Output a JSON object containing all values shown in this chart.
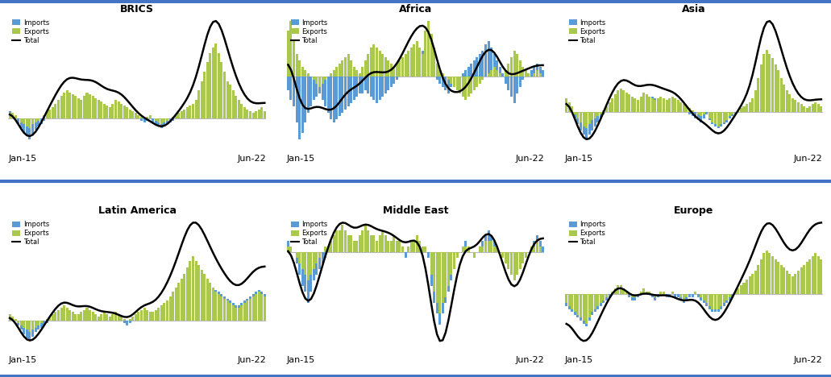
{
  "titles": [
    "BRICS",
    "Africa",
    "Asia",
    "Latin America",
    "Middle East",
    "Europe"
  ],
  "import_color": "#5b9bd5",
  "export_color": "#a9c84c",
  "total_color": "#000000",
  "background_color": "#ffffff",
  "border_color": "#4472c4",
  "legend_labels": [
    "Imports",
    "Exports",
    "Total"
  ],
  "x_start_label": "Jan-15",
  "x_end_label": "Jun-22",
  "n_points": 90,
  "smooth_sigma": 2.5,
  "series": {
    "BRICS": {
      "imports": [
        4,
        1,
        0,
        -3,
        -5,
        -7,
        -9,
        -11,
        -9,
        -6,
        -4,
        -3,
        -1,
        1,
        2,
        3,
        5,
        6,
        7,
        8,
        9,
        10,
        11,
        10,
        9,
        8,
        7,
        8,
        9,
        10,
        10,
        9,
        8,
        8,
        7,
        6,
        7,
        8,
        7,
        6,
        5,
        4,
        3,
        2,
        1,
        0,
        -1,
        -2,
        -1,
        0,
        -2,
        -3,
        -4,
        -5,
        -4,
        -3,
        -2,
        -1,
        0,
        1,
        2,
        3,
        4,
        5,
        6,
        8,
        10,
        12,
        15,
        18,
        20,
        22,
        24,
        22,
        20,
        18,
        15,
        13,
        11,
        9,
        7,
        5,
        5,
        4,
        3,
        2,
        3,
        4,
        5,
        3
      ],
      "exports": [
        3,
        3,
        2,
        0,
        -2,
        -3,
        -4,
        -5,
        -3,
        -2,
        -1,
        0,
        2,
        4,
        5,
        6,
        8,
        10,
        12,
        14,
        15,
        14,
        13,
        12,
        11,
        10,
        12,
        14,
        13,
        12,
        11,
        10,
        9,
        8,
        7,
        6,
        8,
        10,
        9,
        8,
        7,
        6,
        5,
        4,
        3,
        2,
        1,
        0,
        1,
        2,
        0,
        -1,
        -2,
        -3,
        -2,
        -1,
        0,
        1,
        2,
        3,
        4,
        5,
        6,
        7,
        8,
        10,
        15,
        20,
        25,
        30,
        35,
        38,
        40,
        35,
        30,
        25,
        20,
        18,
        15,
        12,
        10,
        8,
        6,
        5,
        4,
        3,
        4,
        5,
        6,
        4
      ],
      "total": [
        7,
        4,
        2,
        -3,
        -7,
        -10,
        -13,
        -16,
        -12,
        -8,
        -5,
        -3,
        1,
        5,
        7,
        9,
        13,
        16,
        19,
        22,
        24,
        24,
        24,
        22,
        20,
        18,
        19,
        22,
        22,
        22,
        21,
        19,
        17,
        16,
        14,
        12,
        15,
        18,
        16,
        14,
        12,
        10,
        8,
        6,
        4,
        2,
        0,
        -2,
        0,
        2,
        -2,
        -4,
        -6,
        -8,
        -6,
        -4,
        -2,
        0,
        2,
        4,
        6,
        8,
        10,
        12,
        14,
        18,
        25,
        32,
        40,
        48,
        55,
        60,
        64,
        57,
        50,
        43,
        35,
        31,
        26,
        21,
        17,
        13,
        11,
        9,
        7,
        5,
        7,
        9,
        11,
        7
      ]
    },
    "Africa": {
      "imports": [
        -4,
        -7,
        -9,
        -14,
        -19,
        -17,
        -14,
        -11,
        -9,
        -7,
        -6,
        -5,
        -7,
        -9,
        -11,
        -13,
        -14,
        -13,
        -12,
        -11,
        -10,
        -9,
        -8,
        -7,
        -6,
        -5,
        -5,
        -4,
        -5,
        -6,
        -7,
        -8,
        -7,
        -6,
        -5,
        -4,
        -3,
        -2,
        -1,
        0,
        1,
        2,
        3,
        4,
        5,
        6,
        7,
        8,
        5,
        3,
        2,
        1,
        -1,
        -2,
        -3,
        -4,
        -5,
        -3,
        -2,
        -1,
        0,
        1,
        2,
        3,
        4,
        5,
        6,
        7,
        8,
        10,
        11,
        9,
        7,
        5,
        3,
        1,
        -2,
        -4,
        -6,
        -8,
        -5,
        -3,
        -1,
        0,
        1,
        2,
        3,
        4,
        3,
        2
      ],
      "exports": [
        14,
        17,
        11,
        7,
        5,
        3,
        2,
        1,
        0,
        -1,
        -2,
        -3,
        -2,
        -1,
        0,
        1,
        2,
        3,
        4,
        5,
        6,
        7,
        5,
        3,
        2,
        1,
        3,
        5,
        7,
        9,
        10,
        9,
        8,
        7,
        6,
        5,
        4,
        3,
        4,
        5,
        6,
        7,
        8,
        9,
        10,
        11,
        9,
        7,
        14,
        17,
        13,
        9,
        4,
        2,
        1,
        0,
        -1,
        -2,
        -3,
        -4,
        -5,
        -6,
        -7,
        -6,
        -5,
        -4,
        -3,
        -2,
        -1,
        0,
        1,
        2,
        3,
        2,
        1,
        0,
        2,
        4,
        6,
        8,
        7,
        5,
        3,
        2,
        1,
        0,
        1,
        2,
        1,
        0
      ],
      "total": [
        10,
        10,
        2,
        -7,
        -14,
        -14,
        -12,
        -10,
        -9,
        -8,
        -8,
        -8,
        -9,
        -10,
        -11,
        -12,
        -12,
        -10,
        -8,
        -6,
        -4,
        -2,
        -3,
        -4,
        -4,
        -4,
        -2,
        1,
        2,
        3,
        3,
        1,
        1,
        1,
        1,
        1,
        1,
        1,
        3,
        5,
        7,
        9,
        11,
        13,
        15,
        17,
        16,
        15,
        19,
        20,
        15,
        10,
        3,
        -2,
        -2,
        -4,
        -6,
        -5,
        -5,
        -5,
        -5,
        -5,
        -5,
        -3,
        -1,
        1,
        3,
        5,
        7,
        10,
        12,
        11,
        10,
        7,
        4,
        1,
        0,
        -2,
        0,
        0,
        2,
        2,
        2,
        2,
        2,
        2,
        4,
        6,
        4,
        2
      ]
    },
    "Asia": {
      "imports": [
        4,
        2,
        1,
        -3,
        -6,
        -9,
        -11,
        -13,
        -11,
        -9,
        -7,
        -5,
        -3,
        -1,
        1,
        3,
        4,
        5,
        6,
        7,
        8,
        9,
        7,
        5,
        4,
        3,
        4,
        5,
        6,
        7,
        8,
        7,
        6,
        5,
        4,
        3,
        4,
        5,
        4,
        3,
        2,
        1,
        0,
        -1,
        -2,
        -3,
        -4,
        -5,
        -3,
        -1,
        -4,
        -6,
        -7,
        -8,
        -7,
        -6,
        -5,
        -3,
        -2,
        -1,
        0,
        1,
        2,
        3,
        4,
        5,
        9,
        14,
        19,
        24,
        27,
        24,
        21,
        19,
        17,
        14,
        11,
        9,
        7,
        5,
        4,
        3,
        2,
        1,
        1,
        2,
        3,
        4,
        3,
        2
      ],
      "exports": [
        7,
        5,
        3,
        -1,
        -3,
        -5,
        -7,
        -8,
        -6,
        -4,
        -3,
        -2,
        -1,
        1,
        3,
        5,
        7,
        9,
        11,
        12,
        11,
        10,
        9,
        8,
        7,
        6,
        8,
        10,
        9,
        8,
        7,
        6,
        7,
        8,
        7,
        6,
        7,
        8,
        7,
        6,
        5,
        4,
        3,
        2,
        1,
        0,
        -1,
        -2,
        -1,
        0,
        -3,
        -5,
        -6,
        -7,
        -6,
        -5,
        -4,
        -2,
        -1,
        0,
        1,
        2,
        3,
        4,
        5,
        7,
        11,
        17,
        24,
        29,
        31,
        29,
        27,
        24,
        21,
        17,
        14,
        11,
        9,
        7,
        6,
        5,
        4,
        3,
        2,
        3,
        4,
        5,
        4,
        3
      ],
      "total": [
        11,
        7,
        4,
        -4,
        -9,
        -14,
        -18,
        -21,
        -17,
        -13,
        -10,
        -7,
        -4,
        0,
        4,
        8,
        11,
        14,
        17,
        19,
        19,
        19,
        16,
        13,
        11,
        9,
        12,
        15,
        15,
        15,
        15,
        13,
        13,
        13,
        11,
        9,
        11,
        13,
        11,
        9,
        7,
        5,
        3,
        1,
        -1,
        -3,
        -5,
        -7,
        -4,
        -1,
        -7,
        -11,
        -13,
        -15,
        -13,
        -11,
        -9,
        -5,
        -3,
        -1,
        1,
        3,
        5,
        7,
        9,
        12,
        20,
        31,
        43,
        53,
        58,
        53,
        48,
        43,
        38,
        31,
        25,
        20,
        16,
        12,
        10,
        8,
        6,
        4,
        3,
        5,
        7,
        9,
        7,
        5
      ]
    },
    "Latin America": {
      "imports": [
        2,
        1,
        0,
        -2,
        -4,
        -6,
        -8,
        -9,
        -7,
        -5,
        -4,
        -3,
        -2,
        -1,
        0,
        1,
        2,
        3,
        4,
        5,
        4,
        3,
        2,
        1,
        1,
        2,
        3,
        4,
        3,
        2,
        1,
        0,
        1,
        2,
        1,
        0,
        1,
        2,
        1,
        0,
        -1,
        -2,
        -1,
        0,
        1,
        2,
        3,
        4,
        3,
        2,
        2,
        3,
        4,
        5,
        6,
        7,
        8,
        9,
        11,
        13,
        15,
        17,
        19,
        21,
        22,
        21,
        20,
        19,
        18,
        17,
        16,
        15,
        14,
        13,
        12,
        11,
        10,
        9,
        8,
        7,
        7,
        8,
        9,
        10,
        11,
        12,
        13,
        14,
        13,
        12
      ],
      "exports": [
        3,
        2,
        1,
        -1,
        -2,
        -3,
        -4,
        -5,
        -4,
        -3,
        -2,
        -1,
        0,
        1,
        2,
        3,
        4,
        5,
        6,
        7,
        6,
        5,
        4,
        3,
        3,
        4,
        5,
        6,
        5,
        4,
        3,
        2,
        3,
        4,
        3,
        2,
        3,
        4,
        3,
        2,
        1,
        0,
        1,
        2,
        3,
        4,
        5,
        6,
        5,
        4,
        4,
        5,
        6,
        7,
        8,
        9,
        11,
        13,
        15,
        17,
        19,
        21,
        24,
        27,
        29,
        27,
        25,
        23,
        21,
        19,
        17,
        15,
        13,
        12,
        11,
        10,
        9,
        8,
        7,
        6,
        6,
        7,
        8,
        9,
        10,
        11,
        12,
        13,
        12,
        11
      ],
      "total": [
        5,
        3,
        1,
        -3,
        -6,
        -9,
        -12,
        -14,
        -11,
        -8,
        -6,
        -4,
        -2,
        0,
        2,
        4,
        6,
        8,
        10,
        12,
        10,
        8,
        6,
        4,
        4,
        6,
        8,
        10,
        8,
        6,
        4,
        2,
        4,
        6,
        4,
        2,
        4,
        6,
        4,
        2,
        0,
        -2,
        0,
        2,
        4,
        6,
        8,
        10,
        8,
        6,
        6,
        8,
        10,
        12,
        14,
        16,
        19,
        22,
        26,
        30,
        34,
        38,
        43,
        48,
        51,
        48,
        45,
        42,
        39,
        36,
        33,
        30,
        27,
        25,
        23,
        21,
        19,
        17,
        15,
        13,
        13,
        15,
        17,
        19,
        21,
        23,
        25,
        27,
        25,
        23
      ]
    },
    "Middle East": {
      "imports": [
        2,
        1,
        0,
        -2,
        -4,
        -6,
        -7,
        -9,
        -7,
        -5,
        -4,
        -3,
        -2,
        -1,
        0,
        1,
        1,
        2,
        2,
        3,
        2,
        2,
        1,
        1,
        0,
        1,
        2,
        3,
        2,
        1,
        1,
        0,
        1,
        2,
        1,
        0,
        1,
        2,
        1,
        0,
        0,
        -1,
        0,
        1,
        1,
        2,
        1,
        0,
        0,
        -1,
        -6,
        -9,
        -11,
        -13,
        -11,
        -9,
        -7,
        -5,
        -3,
        -1,
        0,
        1,
        2,
        1,
        0,
        -1,
        0,
        1,
        2,
        3,
        4,
        3,
        2,
        1,
        0,
        -1,
        -2,
        -3,
        -4,
        -5,
        -4,
        -3,
        -2,
        -1,
        0,
        1,
        2,
        3,
        2,
        1
      ],
      "exports": [
        1,
        1,
        0,
        -1,
        -2,
        -3,
        -4,
        -5,
        -4,
        -3,
        -2,
        -1,
        0,
        1,
        1,
        2,
        3,
        4,
        4,
        5,
        4,
        3,
        3,
        2,
        2,
        3,
        4,
        5,
        4,
        3,
        3,
        2,
        3,
        4,
        3,
        2,
        2,
        3,
        2,
        2,
        1,
        0,
        1,
        2,
        2,
        3,
        2,
        1,
        1,
        0,
        -4,
        -7,
        -9,
        -11,
        -9,
        -8,
        -6,
        -4,
        -3,
        -1,
        0,
        1,
        1,
        1,
        0,
        -1,
        0,
        1,
        1,
        2,
        2,
        2,
        1,
        1,
        0,
        -1,
        -2,
        -3,
        -4,
        -5,
        -4,
        -3,
        -2,
        -1,
        0,
        1,
        1,
        2,
        1,
        0
      ],
      "total": [
        3,
        2,
        0,
        -3,
        -6,
        -9,
        -11,
        -14,
        -11,
        -8,
        -6,
        -4,
        -2,
        0,
        1,
        3,
        4,
        6,
        6,
        8,
        6,
        5,
        4,
        3,
        2,
        4,
        6,
        8,
        6,
        4,
        4,
        2,
        4,
        6,
        4,
        2,
        3,
        5,
        3,
        2,
        1,
        -1,
        1,
        3,
        3,
        5,
        3,
        1,
        1,
        -1,
        -10,
        -16,
        -20,
        -24,
        -20,
        -17,
        -13,
        -9,
        -6,
        -2,
        0,
        2,
        3,
        2,
        0,
        -2,
        0,
        2,
        3,
        5,
        6,
        5,
        3,
        2,
        0,
        -2,
        -4,
        -6,
        -8,
        -10,
        -8,
        -6,
        -4,
        -2,
        0,
        2,
        3,
        5,
        3,
        1
      ]
    },
    "Europe": {
      "imports": [
        -4,
        -5,
        -6,
        -7,
        -8,
        -9,
        -10,
        -11,
        -9,
        -7,
        -6,
        -5,
        -4,
        -3,
        -2,
        -1,
        0,
        1,
        2,
        2,
        1,
        0,
        -1,
        -2,
        -2,
        -1,
        0,
        1,
        0,
        0,
        -1,
        -2,
        -1,
        0,
        0,
        -1,
        -1,
        0,
        -1,
        -1,
        -2,
        -3,
        -2,
        -1,
        -1,
        0,
        -1,
        -2,
        -3,
        -4,
        -5,
        -6,
        -6,
        -6,
        -5,
        -4,
        -3,
        -2,
        -1,
        0,
        1,
        2,
        3,
        4,
        5,
        6,
        7,
        9,
        11,
        13,
        14,
        13,
        12,
        11,
        10,
        9,
        8,
        7,
        6,
        5,
        6,
        7,
        8,
        9,
        10,
        11,
        12,
        13,
        12,
        11
      ],
      "exports": [
        -3,
        -4,
        -5,
        -6,
        -7,
        -8,
        -9,
        -10,
        -8,
        -6,
        -5,
        -4,
        -3,
        -2,
        -1,
        0,
        1,
        2,
        3,
        3,
        2,
        1,
        0,
        -1,
        -1,
        0,
        1,
        2,
        1,
        1,
        0,
        -1,
        0,
        1,
        1,
        0,
        0,
        1,
        0,
        0,
        -1,
        -2,
        -1,
        0,
        0,
        1,
        0,
        -1,
        -2,
        -3,
        -4,
        -5,
        -5,
        -5,
        -4,
        -3,
        -2,
        -1,
        0,
        1,
        2,
        3,
        4,
        5,
        6,
        7,
        8,
        10,
        12,
        14,
        15,
        14,
        13,
        12,
        11,
        10,
        9,
        8,
        7,
        6,
        7,
        8,
        9,
        10,
        11,
        12,
        13,
        14,
        13,
        12
      ],
      "total": [
        -7,
        -9,
        -11,
        -13,
        -15,
        -17,
        -19,
        -21,
        -17,
        -13,
        -11,
        -9,
        -7,
        -5,
        -3,
        -1,
        1,
        3,
        5,
        5,
        3,
        1,
        -1,
        -3,
        -3,
        -1,
        1,
        3,
        1,
        1,
        -1,
        -3,
        -1,
        1,
        1,
        -1,
        -1,
        1,
        -1,
        -1,
        -3,
        -5,
        -3,
        -1,
        -1,
        1,
        -1,
        -3,
        -5,
        -7,
        -9,
        -11,
        -11,
        -11,
        -9,
        -7,
        -5,
        -3,
        -1,
        1,
        3,
        5,
        7,
        9,
        11,
        13,
        15,
        19,
        23,
        27,
        29,
        27,
        25,
        23,
        21,
        19,
        17,
        15,
        13,
        11,
        13,
        15,
        17,
        19,
        21,
        23,
        25,
        27,
        25,
        23
      ]
    }
  }
}
